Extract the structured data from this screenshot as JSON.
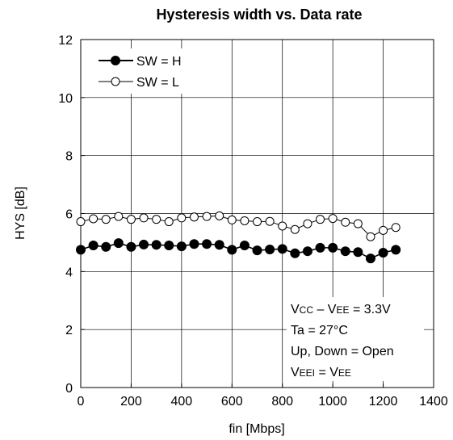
{
  "chart_data": {
    "type": "line",
    "title": "Hysteresis width vs. Data rate",
    "xlabel": "fin [Mbps]",
    "ylabel": "HYS [dB]",
    "xlim": [
      0,
      1400
    ],
    "ylim": [
      0,
      12
    ],
    "x_ticks": [
      "0",
      "200",
      "400",
      "600",
      "800",
      "1000",
      "1200",
      "1400"
    ],
    "y_ticks": [
      "0",
      "2",
      "4",
      "6",
      "8",
      "10",
      "12"
    ],
    "grid": true,
    "legend_position": "top-left",
    "x": [
      0,
      50,
      100,
      150,
      200,
      250,
      300,
      350,
      400,
      450,
      500,
      550,
      600,
      650,
      700,
      750,
      800,
      850,
      900,
      950,
      1000,
      1050,
      1100,
      1150,
      1200,
      1250
    ],
    "series": [
      {
        "name": "SW = H",
        "marker": "filled-circle",
        "values": [
          4.75,
          4.9,
          4.85,
          4.98,
          4.85,
          4.93,
          4.92,
          4.9,
          4.87,
          4.95,
          4.95,
          4.92,
          4.75,
          4.9,
          4.73,
          4.76,
          4.78,
          4.63,
          4.7,
          4.82,
          4.82,
          4.7,
          4.67,
          4.45,
          4.65,
          4.75
        ]
      },
      {
        "name": "SW = L",
        "marker": "open-circle",
        "values": [
          5.72,
          5.82,
          5.8,
          5.9,
          5.8,
          5.85,
          5.8,
          5.72,
          5.85,
          5.88,
          5.9,
          5.92,
          5.78,
          5.75,
          5.72,
          5.73,
          5.57,
          5.45,
          5.65,
          5.8,
          5.83,
          5.7,
          5.65,
          5.2,
          5.42,
          5.52
        ]
      }
    ],
    "annotations": [
      "VCC – VEE = 3.3V",
      "Ta = 27°C",
      "Up, Down = Open",
      "VEEI = VEE"
    ]
  }
}
